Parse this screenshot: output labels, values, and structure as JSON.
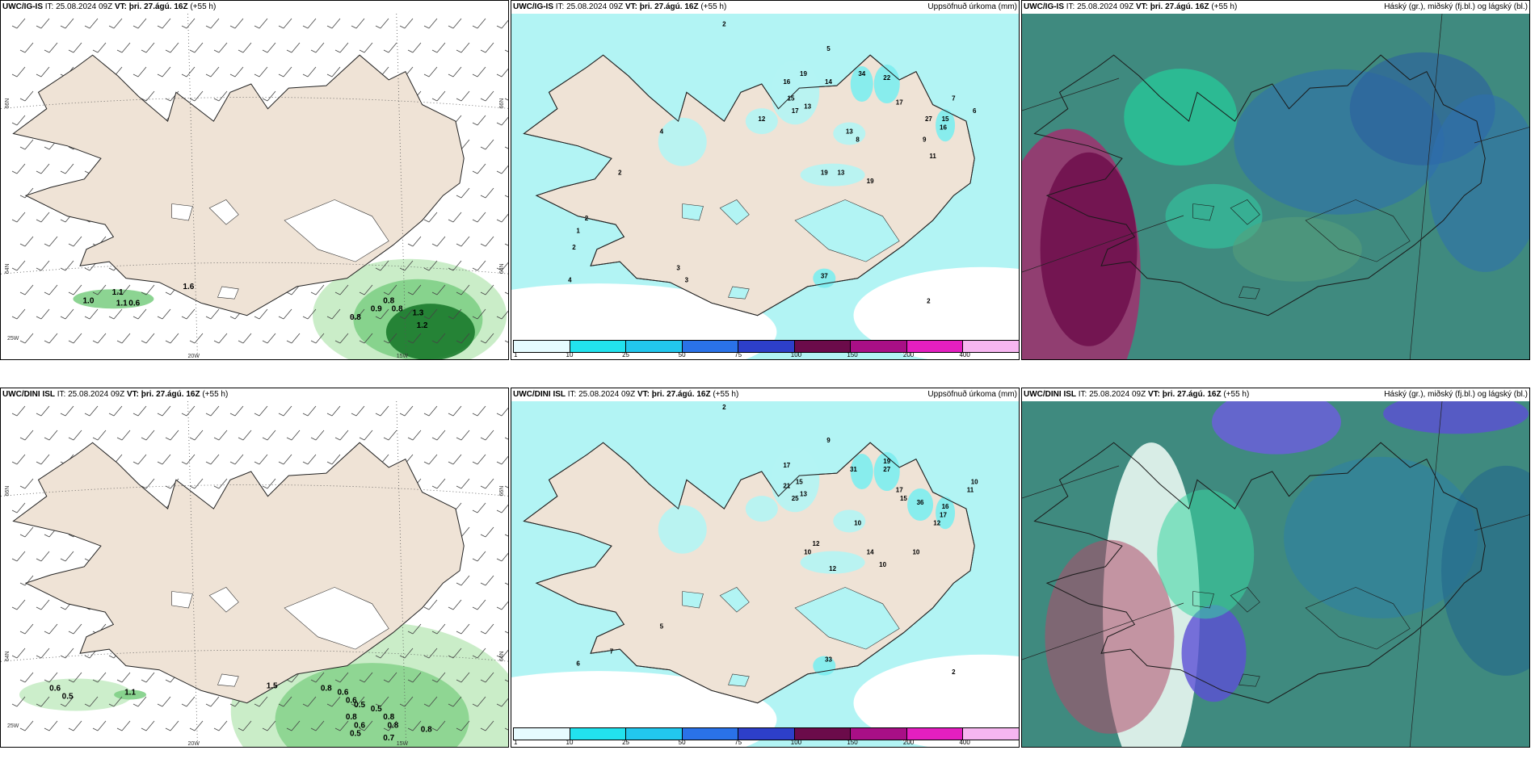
{
  "header": {
    "it_text": "IT: 25.08.2024 09Z",
    "vt_label": "VT:",
    "vt_value": "þri. 27.ágú. 16Z",
    "lead": "(+55 h)",
    "precip_title": "Uppsöfnuð úrkoma (mm)",
    "cloud_title": "Háský (gr.), miðský (fj.bl.) og lágský (bl.)"
  },
  "rows": [
    {
      "model": "UWC/IG-IS"
    },
    {
      "model": "UWC/DINI ISL"
    }
  ],
  "axes": {
    "lat_66": "66N",
    "lat_64": "64N",
    "lon_20": "20W",
    "lon_15": "15W",
    "lon_25": "25W"
  },
  "colors": {
    "land": "#efe3d6",
    "sea_precip": "#b2f4f4",
    "precip_light": "#7cedf0",
    "green_light": "#c7ecc5",
    "green_mid": "#7fcf86",
    "green_dark": "#1b7a2c",
    "cloud_base": "#3f8a7f"
  },
  "colorbar": {
    "ticks": [
      "1",
      "10",
      "25",
      "50",
      "75",
      "100",
      "150",
      "200",
      "400"
    ],
    "colors": [
      "#e6fbff",
      "#22e2ee",
      "#22c7ee",
      "#2a72e8",
      "#2d3fc9",
      "#6b0b4a",
      "#a80f86",
      "#e41fc0",
      "#f6b6f0"
    ]
  },
  "chart_data": [
    {
      "type": "heatmap",
      "panel": "IG-IS wind / 3h precip",
      "labels": [
        {
          "v": "1.1",
          "x": -21.8,
          "y": 63.65
        },
        {
          "v": "1.0",
          "x": -22.5,
          "y": 63.55
        },
        {
          "v": "1.1",
          "x": -21.7,
          "y": 63.52
        },
        {
          "v": "0.6",
          "x": -21.4,
          "y": 63.52
        },
        {
          "v": "1.6",
          "x": -20.1,
          "y": 63.72
        },
        {
          "v": "0.8",
          "x": -15.3,
          "y": 63.55
        },
        {
          "v": "0.8",
          "x": -15.1,
          "y": 63.45
        },
        {
          "v": "0.9",
          "x": -15.6,
          "y": 63.45
        },
        {
          "v": "0.8",
          "x": -16.1,
          "y": 63.35
        },
        {
          "v": "1.3",
          "x": -14.6,
          "y": 63.4
        },
        {
          "v": "1.2",
          "x": -14.5,
          "y": 63.25
        }
      ]
    },
    {
      "type": "heatmap",
      "panel": "IG-IS accumulated precipitation (mm)",
      "labels": [
        {
          "v": "2",
          "x": -19.5,
          "y": 66.9
        },
        {
          "v": "5",
          "x": -17.0,
          "y": 66.6
        },
        {
          "v": "16",
          "x": -18.0,
          "y": 66.2
        },
        {
          "v": "15",
          "x": -17.9,
          "y": 66.0
        },
        {
          "v": "19",
          "x": -17.6,
          "y": 66.3
        },
        {
          "v": "13",
          "x": -17.5,
          "y": 65.9
        },
        {
          "v": "17",
          "x": -17.8,
          "y": 65.85
        },
        {
          "v": "14",
          "x": -17.0,
          "y": 66.2
        },
        {
          "v": "34",
          "x": -16.2,
          "y": 66.3
        },
        {
          "v": "22",
          "x": -15.6,
          "y": 66.25
        },
        {
          "v": "17",
          "x": -15.3,
          "y": 65.95
        },
        {
          "v": "27",
          "x": -14.6,
          "y": 65.75
        },
        {
          "v": "15",
          "x": -14.2,
          "y": 65.75
        },
        {
          "v": "16",
          "x": -14.25,
          "y": 65.65
        },
        {
          "v": "13",
          "x": -16.5,
          "y": 65.6
        },
        {
          "v": "19",
          "x": -17.1,
          "y": 65.1
        },
        {
          "v": "13",
          "x": -16.7,
          "y": 65.1
        },
        {
          "v": "19",
          "x": -16.0,
          "y": 65.0
        },
        {
          "v": "12",
          "x": -18.6,
          "y": 65.75
        },
        {
          "v": "37",
          "x": -17.1,
          "y": 63.85
        },
        {
          "v": "9",
          "x": -14.7,
          "y": 65.5
        },
        {
          "v": "11",
          "x": -14.5,
          "y": 65.3
        },
        {
          "v": "8",
          "x": -16.3,
          "y": 65.5
        },
        {
          "v": "7",
          "x": -14.0,
          "y": 66.0
        },
        {
          "v": "4",
          "x": -21.0,
          "y": 65.6
        },
        {
          "v": "2",
          "x": -22.0,
          "y": 65.1
        },
        {
          "v": "2",
          "x": -22.8,
          "y": 64.55
        },
        {
          "v": "1",
          "x": -23.0,
          "y": 64.4
        },
        {
          "v": "2",
          "x": -23.1,
          "y": 64.2
        },
        {
          "v": "4",
          "x": -23.2,
          "y": 63.8
        },
        {
          "v": "3",
          "x": -20.6,
          "y": 63.95
        },
        {
          "v": "3",
          "x": -20.4,
          "y": 63.8
        },
        {
          "v": "6",
          "x": -13.5,
          "y": 65.85
        },
        {
          "v": "2",
          "x": -14.6,
          "y": 63.55
        }
      ]
    },
    {
      "type": "heatmap",
      "panel": "IG-IS cloud cover (high/mid/low)",
      "values": []
    },
    {
      "type": "heatmap",
      "panel": "DINI wind / 3h precip",
      "labels": [
        {
          "v": "1.5",
          "x": -18.1,
          "y": 63.58
        },
        {
          "v": "0.6",
          "x": -23.3,
          "y": 63.55
        },
        {
          "v": "0.5",
          "x": -23.0,
          "y": 63.45
        },
        {
          "v": "1.1",
          "x": -21.5,
          "y": 63.5
        },
        {
          "v": "0.8",
          "x": -16.8,
          "y": 63.55
        },
        {
          "v": "0.6",
          "x": -16.4,
          "y": 63.5
        },
        {
          "v": "0.6",
          "x": -16.2,
          "y": 63.4
        },
        {
          "v": "0.5",
          "x": -16.0,
          "y": 63.35
        },
        {
          "v": "0.5",
          "x": -15.6,
          "y": 63.3
        },
        {
          "v": "0.8",
          "x": -16.2,
          "y": 63.2
        },
        {
          "v": "0.6",
          "x": -16.0,
          "y": 63.1
        },
        {
          "v": "0.5",
          "x": -16.1,
          "y": 63.0
        },
        {
          "v": "0.8",
          "x": -15.3,
          "y": 63.2
        },
        {
          "v": "0.8",
          "x": -15.2,
          "y": 63.1
        },
        {
          "v": "0.7",
          "x": -15.3,
          "y": 62.95
        },
        {
          "v": "0.8",
          "x": -14.4,
          "y": 63.05
        }
      ]
    },
    {
      "type": "heatmap",
      "panel": "DINI accumulated precipitation (mm)",
      "labels": [
        {
          "v": "2",
          "x": -19.5,
          "y": 66.95
        },
        {
          "v": "9",
          "x": -17.0,
          "y": 66.55
        },
        {
          "v": "17",
          "x": -18.0,
          "y": 66.25
        },
        {
          "v": "21",
          "x": -18.0,
          "y": 66.0
        },
        {
          "v": "15",
          "x": -17.7,
          "y": 66.05
        },
        {
          "v": "25",
          "x": -17.8,
          "y": 65.85
        },
        {
          "v": "13",
          "x": -17.6,
          "y": 65.9
        },
        {
          "v": "31",
          "x": -16.4,
          "y": 66.2
        },
        {
          "v": "19",
          "x": -15.6,
          "y": 66.3
        },
        {
          "v": "27",
          "x": -15.6,
          "y": 66.2
        },
        {
          "v": "17",
          "x": -15.3,
          "y": 65.95
        },
        {
          "v": "15",
          "x": -15.2,
          "y": 65.85
        },
        {
          "v": "36",
          "x": -14.8,
          "y": 65.8
        },
        {
          "v": "16",
          "x": -14.2,
          "y": 65.75
        },
        {
          "v": "17",
          "x": -14.25,
          "y": 65.65
        },
        {
          "v": "12",
          "x": -14.4,
          "y": 65.55
        },
        {
          "v": "11",
          "x": -13.6,
          "y": 65.95
        },
        {
          "v": "10",
          "x": -13.5,
          "y": 66.05
        },
        {
          "v": "10",
          "x": -16.3,
          "y": 65.55
        },
        {
          "v": "10",
          "x": -17.5,
          "y": 65.2
        },
        {
          "v": "12",
          "x": -17.3,
          "y": 65.3
        },
        {
          "v": "14",
          "x": -16.0,
          "y": 65.2
        },
        {
          "v": "10",
          "x": -14.9,
          "y": 65.2
        },
        {
          "v": "10",
          "x": -15.7,
          "y": 65.05
        },
        {
          "v": "12",
          "x": -16.9,
          "y": 65.0
        },
        {
          "v": "33",
          "x": -17.0,
          "y": 63.9
        },
        {
          "v": "7",
          "x": -22.2,
          "y": 64.0
        },
        {
          "v": "6",
          "x": -23.0,
          "y": 63.85
        },
        {
          "v": "5",
          "x": -21.0,
          "y": 64.3
        },
        {
          "v": "2",
          "x": -14.0,
          "y": 63.75
        }
      ]
    },
    {
      "type": "heatmap",
      "panel": "DINI cloud cover (high/mid/low)",
      "values": []
    }
  ]
}
